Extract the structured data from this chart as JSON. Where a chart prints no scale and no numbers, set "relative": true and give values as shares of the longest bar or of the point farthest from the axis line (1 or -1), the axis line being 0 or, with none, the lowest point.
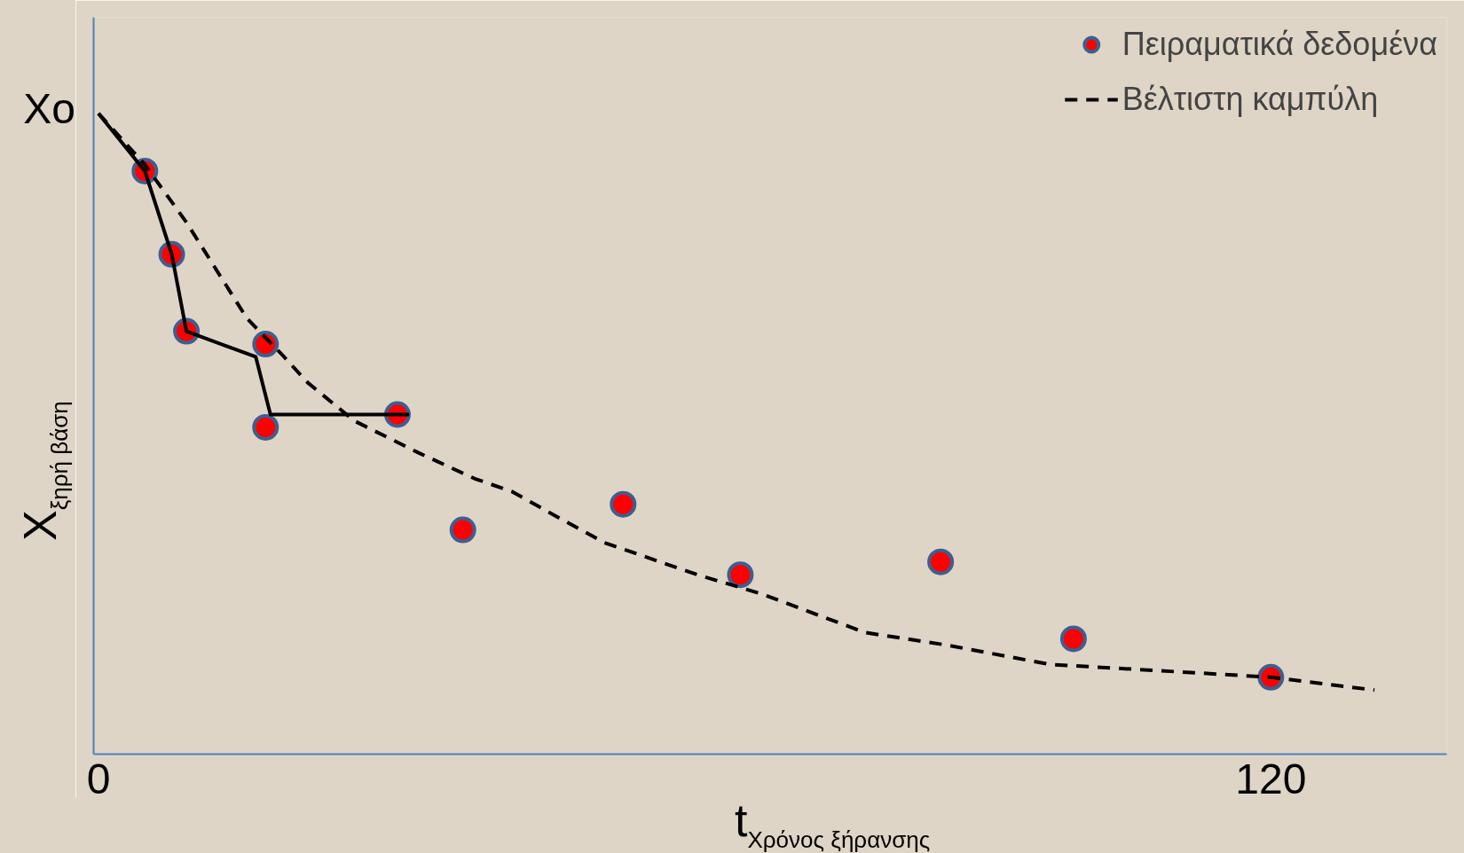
{
  "chart_data": {
    "type": "scatter",
    "relative": true,
    "xlabel": "t$_{Χρόνος ξήρανσης}$",
    "ylabel": "X$_{ξηρή βάση}$",
    "xlim": [
      -0.5,
      138
    ],
    "xticks": [
      0,
      120
    ],
    "grid": false,
    "legend": "top right",
    "tick_labels": "x",
    "annotations": [
      {
        "text": "Xo",
        "x": 0,
        "y": 1
      }
    ],
    "series": [
      {
        "name": "Πειραματικά δεδομένα",
        "type": "scatter",
        "color": "#ff0000",
        "marker": "circle",
        "x": [
          4.75,
          7.5,
          9.0,
          17.1,
          17.1,
          30.6,
          37.3,
          53.7,
          65.7,
          86.2,
          99.8,
          120
        ],
        "values": [
          0.91,
          0.78,
          0.66,
          0.64,
          0.51,
          0.53,
          0.35,
          0.39,
          0.28,
          0.3,
          0.18,
          0.12
        ]
      },
      {
        "type": "line",
        "color": "#000000",
        "line_style": "solid",
        "x": [
          0,
          4.75,
          7.5,
          9.0,
          16.1,
          17.6,
          31.8
        ],
        "values": [
          1.0,
          0.91,
          0.78,
          0.66,
          0.62,
          0.53,
          0.53
        ]
      },
      {
        "name": "Βέλτιστη καμπύλη",
        "type": "line",
        "color": "#000000",
        "line_style": "dashed",
        "x": [
          0,
          4.75,
          9.0,
          15.2,
          19.0,
          21.4,
          26.2,
          32.8,
          38.5,
          42.3,
          47.0,
          51.8,
          61.3,
          67.9,
          78.4,
          86.9,
          97.4,
          108.8,
          120,
          130.6
        ],
        "values": [
          1.0,
          0.92,
          0.83,
          0.68,
          0.62,
          0.58,
          0.52,
          0.47,
          0.43,
          0.41,
          0.37,
          0.33,
          0.28,
          0.25,
          0.19,
          0.17,
          0.14,
          0.13,
          0.12,
          0.1
        ]
      }
    ]
  }
}
